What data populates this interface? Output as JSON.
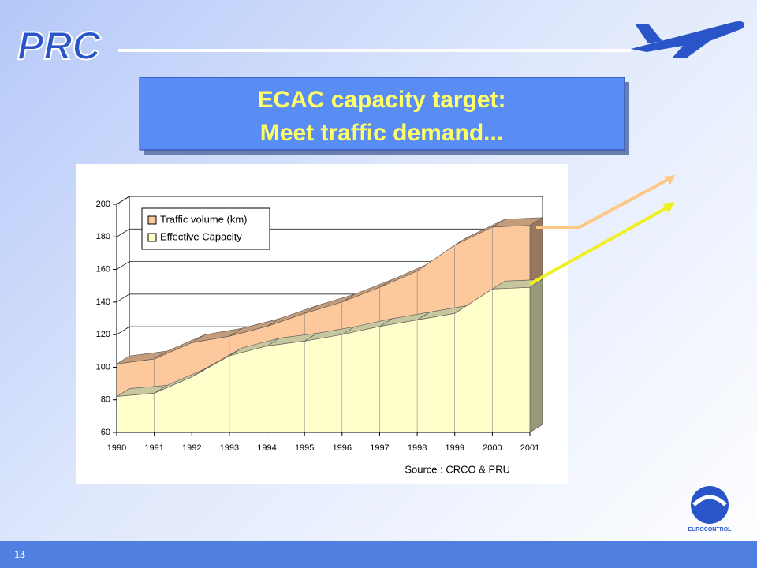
{
  "slide": {
    "logo": "PRC",
    "page_number": "13",
    "org": "EUROCONTROL"
  },
  "chart_data": {
    "type": "area",
    "title": "ECAC capacity target:",
    "subtitle": "Meet traffic demand...",
    "source": "Source : CRCO & PRU",
    "x": [
      1990,
      1991,
      1992,
      1993,
      1994,
      1995,
      1996,
      1997,
      1998,
      1999,
      2000,
      2001
    ],
    "xlim": [
      1990,
      2001
    ],
    "xticks": [
      1990,
      1991,
      1992,
      1993,
      1994,
      1995,
      1996,
      1997,
      1998,
      1999,
      2000,
      2001
    ],
    "ylim": [
      60,
      200
    ],
    "yticks": [
      60,
      80,
      100,
      120,
      140,
      160,
      180,
      200
    ],
    "grid": true,
    "legend": "upper left",
    "series": [
      {
        "name": "Traffic volume (km)",
        "color": "#fcc89c",
        "values": [
          102,
          105,
          115,
          119,
          125,
          133,
          140,
          149,
          159,
          175,
          186,
          187
        ]
      },
      {
        "name": "Effective Capacity",
        "color": "#ffffcc",
        "values": [
          82,
          84,
          94,
          107,
          113,
          116,
          120,
          125,
          129,
          133,
          148,
          149
        ]
      }
    ]
  }
}
